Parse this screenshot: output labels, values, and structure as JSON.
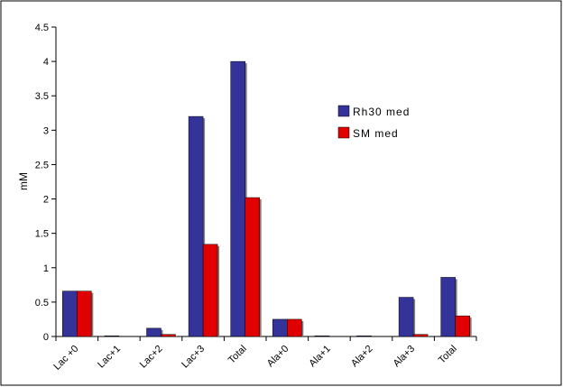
{
  "chart_data": {
    "type": "bar",
    "title": "",
    "xlabel": "",
    "ylabel": "mM",
    "ylim": [
      0,
      4.5
    ],
    "yticks": [
      0,
      0.5,
      1,
      1.5,
      2,
      2.5,
      3,
      3.5,
      4,
      4.5
    ],
    "ytick_labels": [
      "0",
      "0.5",
      "1",
      "1.5",
      "2",
      "2.5",
      "3",
      "3.5",
      "4",
      "4.5"
    ],
    "categories": [
      "Lac +0",
      "Lac+1",
      "Lac+2",
      "Lac+3",
      "Total",
      "Ala+0",
      "Ala+1",
      "Ala+2",
      "Ala+3",
      "Total"
    ],
    "series": [
      {
        "name": "Rh30 med",
        "color": "#33339a",
        "values": [
          0.66,
          0.01,
          0.12,
          3.2,
          4.0,
          0.25,
          0.01,
          0.01,
          0.57,
          0.86
        ]
      },
      {
        "name": "SM med",
        "color": "#e00000",
        "values": [
          0.66,
          0.0,
          0.03,
          1.34,
          2.02,
          0.25,
          0.0,
          0.0,
          0.03,
          0.3
        ]
      }
    ],
    "legend_position": "right",
    "grid": false
  }
}
